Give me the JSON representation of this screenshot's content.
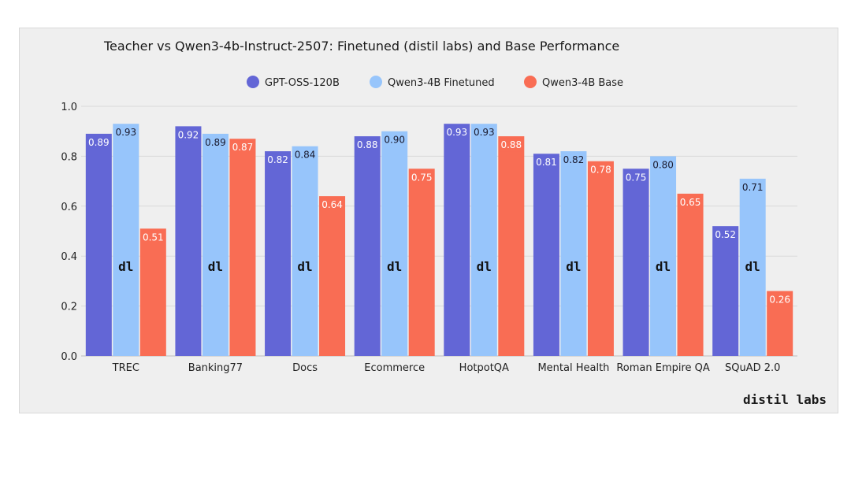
{
  "chart_data": {
    "type": "bar",
    "title": "Teacher vs Qwen3-4b-Instruct-2507: Finetuned (distil labs) and Base Performance",
    "xlabel": "",
    "ylabel": "",
    "ylim": [
      0,
      1.0
    ],
    "yticks": [
      "0.0",
      "0.2",
      "0.4",
      "0.6",
      "0.8",
      "1.0"
    ],
    "grid": true,
    "legend_position": "top-center",
    "categories": [
      "TREC",
      "Banking77",
      "Docs",
      "Ecommerce",
      "HotpotQA",
      "Mental Health",
      "Roman Empire QA",
      "SQuAD 2.0"
    ],
    "series": [
      {
        "name": "GPT-OSS-120B",
        "color": "#6366d6",
        "values": [
          0.89,
          0.92,
          0.82,
          0.88,
          0.93,
          0.81,
          0.75,
          0.52
        ]
      },
      {
        "name": "Qwen3-4B Finetuned",
        "color": "#97c5fb",
        "values": [
          0.93,
          0.89,
          0.84,
          0.9,
          0.93,
          0.82,
          0.8,
          0.71
        ]
      },
      {
        "name": "Qwen3-4B Base",
        "color": "#f96d54",
        "values": [
          0.51,
          0.87,
          0.64,
          0.75,
          0.88,
          0.78,
          0.65,
          0.26
        ]
      }
    ],
    "bar_logo": "dl",
    "brand": "distil labs"
  }
}
